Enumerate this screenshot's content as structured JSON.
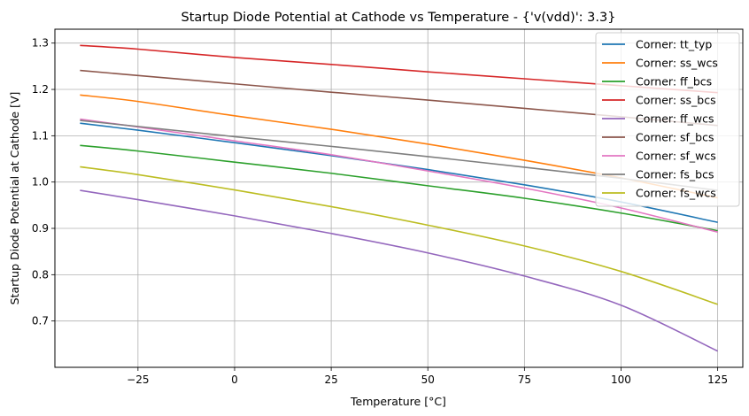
{
  "chart_data": {
    "type": "line",
    "title": "Startup Diode Potential at Cathode vs Temperature - {'v(vdd)': 3.3}",
    "xlabel": "Temperature [°C]",
    "ylabel": "Startup Diode Potential at Cathode [V]",
    "xlim": [
      -46.5,
      131.5
    ],
    "ylim": [
      0.6,
      1.33
    ],
    "xticks": [
      -25,
      0,
      25,
      50,
      75,
      100,
      125
    ],
    "yticks": [
      0.7,
      0.8,
      0.9,
      1.0,
      1.1,
      1.2,
      1.3
    ],
    "xtick_labels": [
      "−25",
      "0",
      "25",
      "50",
      "75",
      "100",
      "125"
    ],
    "ytick_labels": [
      "0.7",
      "0.8",
      "0.9",
      "1.0",
      "1.1",
      "1.2",
      "1.3"
    ],
    "grid": true,
    "legend_position": "top-right",
    "x": [
      -40,
      -25,
      0,
      25,
      50,
      75,
      100,
      125
    ],
    "series": [
      {
        "name": "Corner: tt_typ",
        "color": "#1f77b4",
        "values": [
          1.127,
          1.112,
          1.085,
          1.057,
          1.027,
          0.994,
          0.957,
          0.913
        ]
      },
      {
        "name": "Corner: ss_wcs",
        "color": "#ff7f0e",
        "values": [
          1.188,
          1.174,
          1.143,
          1.114,
          1.082,
          1.047,
          1.009,
          0.966
        ]
      },
      {
        "name": "Corner: ff_bcs",
        "color": "#2ca02c",
        "values": [
          1.079,
          1.067,
          1.043,
          1.019,
          0.992,
          0.965,
          0.933,
          0.895
        ]
      },
      {
        "name": "Corner: ss_bcs",
        "color": "#d62728",
        "values": [
          1.295,
          1.287,
          1.269,
          1.254,
          1.238,
          1.223,
          1.208,
          1.193
        ]
      },
      {
        "name": "Corner: ff_wcs",
        "color": "#9467bd",
        "values": [
          0.982,
          0.962,
          0.927,
          0.889,
          0.847,
          0.797,
          0.734,
          0.635
        ]
      },
      {
        "name": "Corner: sf_bcs",
        "color": "#8c564b",
        "values": [
          1.241,
          1.23,
          1.212,
          1.194,
          1.177,
          1.159,
          1.141,
          1.122
        ]
      },
      {
        "name": "Corner: sf_wcs",
        "color": "#e377c2",
        "values": [
          1.136,
          1.119,
          1.089,
          1.059,
          1.024,
          0.987,
          0.944,
          0.892
        ]
      },
      {
        "name": "Corner: fs_bcs",
        "color": "#7f7f7f",
        "values": [
          1.133,
          1.12,
          1.098,
          1.077,
          1.055,
          1.032,
          1.008,
          0.982
        ]
      },
      {
        "name": "Corner: fs_wcs",
        "color": "#bcbd22",
        "values": [
          1.033,
          1.016,
          0.983,
          0.947,
          0.907,
          0.862,
          0.807,
          0.736
        ]
      }
    ]
  }
}
